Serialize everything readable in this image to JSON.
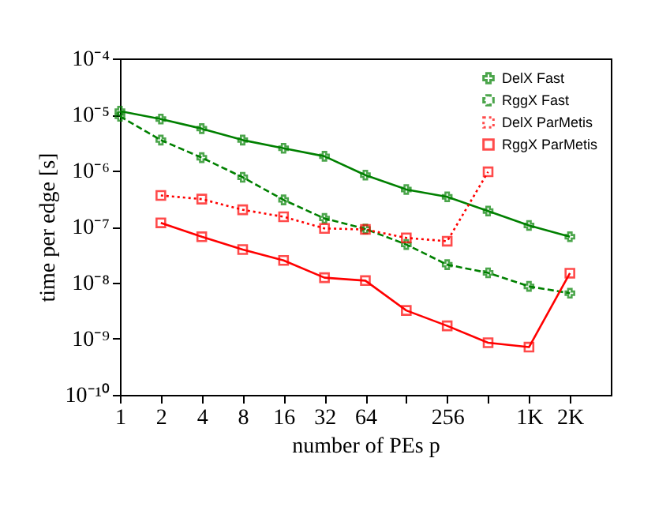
{
  "chart_data": {
    "type": "line",
    "xlabel": "number of PEs p",
    "ylabel": "time per edge [s]",
    "log": "xy",
    "grid": false,
    "legend": "top right",
    "x": [
      1,
      2,
      4,
      8,
      16,
      32,
      64,
      128,
      256,
      512,
      1024,
      2048
    ],
    "xlim": [
      1,
      4096
    ],
    "xticks": [
      1,
      2,
      4,
      8,
      16,
      32,
      64,
      {
        "value": 128,
        "label": null
      },
      256,
      {
        "value": 512,
        "label": null
      },
      {
        "value": 1024,
        "label": "1K"
      },
      {
        "value": 2048,
        "label": "2K"
      }
    ],
    "ylim": [
      1e-10,
      0.0001
    ],
    "yticks": [
      {
        "value": 1e-10,
        "label": "10⁻¹⁰"
      },
      {
        "value": 1e-09,
        "label": "10⁻⁹"
      },
      {
        "value": 1e-08,
        "label": "10⁻⁸"
      },
      {
        "value": 1e-07,
        "label": "10⁻⁷"
      },
      {
        "value": 1e-06,
        "label": "10⁻⁶"
      },
      {
        "value": 1e-05,
        "label": "10⁻⁵"
      },
      {
        "value": 0.0001,
        "label": "10⁻⁴"
      }
    ],
    "series": [
      {
        "name": "DelX Fast",
        "color": "#008000",
        "marker": "cross",
        "line_style": "solid",
        "values": [
          1.15e-05,
          8.3e-06,
          5.6e-06,
          3.5e-06,
          2.5e-06,
          1.8e-06,
          8.3e-07,
          4.6e-07,
          3.4e-07,
          1.9e-07,
          1.05e-07,
          6.6e-08
        ]
      },
      {
        "name": "RggX Fast",
        "color": "#008000",
        "marker": "cross",
        "line_style": "dashed",
        "values": [
          9.3e-06,
          3.5e-06,
          1.7e-06,
          7.6e-07,
          3e-07,
          1.4e-07,
          9.1e-08,
          4.8e-08,
          2.1e-08,
          1.5e-08,
          8.6e-09,
          6.5e-09
        ]
      },
      {
        "name": "DelX ParMetis",
        "color": "#ff0000",
        "marker": "square",
        "line_style": "dotted",
        "values": [
          null,
          3.6e-07,
          3.1e-07,
          2e-07,
          1.5e-07,
          9.3e-08,
          8.9e-08,
          6.3e-08,
          5.5e-08,
          9.5e-07,
          null,
          null
        ]
      },
      {
        "name": "RggX ParMetis",
        "color": "#ff0000",
        "marker": "square",
        "line_style": "solid",
        "values": [
          null,
          1.17e-07,
          6.6e-08,
          3.9e-08,
          2.5e-08,
          1.23e-08,
          1.09e-08,
          3.2e-09,
          1.7e-09,
          8.5e-10,
          7.1e-10,
          1.48e-08
        ]
      }
    ]
  }
}
